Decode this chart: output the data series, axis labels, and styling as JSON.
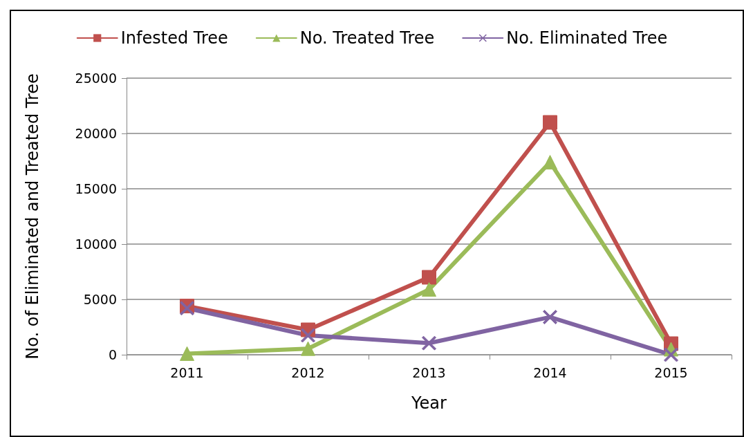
{
  "chart_data": {
    "type": "line",
    "xlabel": "Year",
    "ylabel": "No. of Eliminated and Treated Tree",
    "categories": [
      "2011",
      "2012",
      "2013",
      "2014",
      "2015"
    ],
    "series": [
      {
        "name": "Infested Tree",
        "color": "#c0504d",
        "marker": "square",
        "values": [
          4400,
          2250,
          7000,
          21000,
          1000
        ]
      },
      {
        "name": "No. Treated Tree",
        "color": "#9bbb59",
        "marker": "triangle",
        "values": [
          100,
          550,
          5900,
          17400,
          500
        ]
      },
      {
        "name": "No. Eliminated Tree",
        "color": "#8064a2",
        "marker": "cross",
        "values": [
          4200,
          1750,
          1050,
          3400,
          0
        ]
      }
    ],
    "ylim": [
      0,
      25000
    ],
    "yticks": [
      0,
      5000,
      10000,
      15000,
      20000,
      25000
    ],
    "grid": "y",
    "legend": "top",
    "line_style": "solid"
  }
}
